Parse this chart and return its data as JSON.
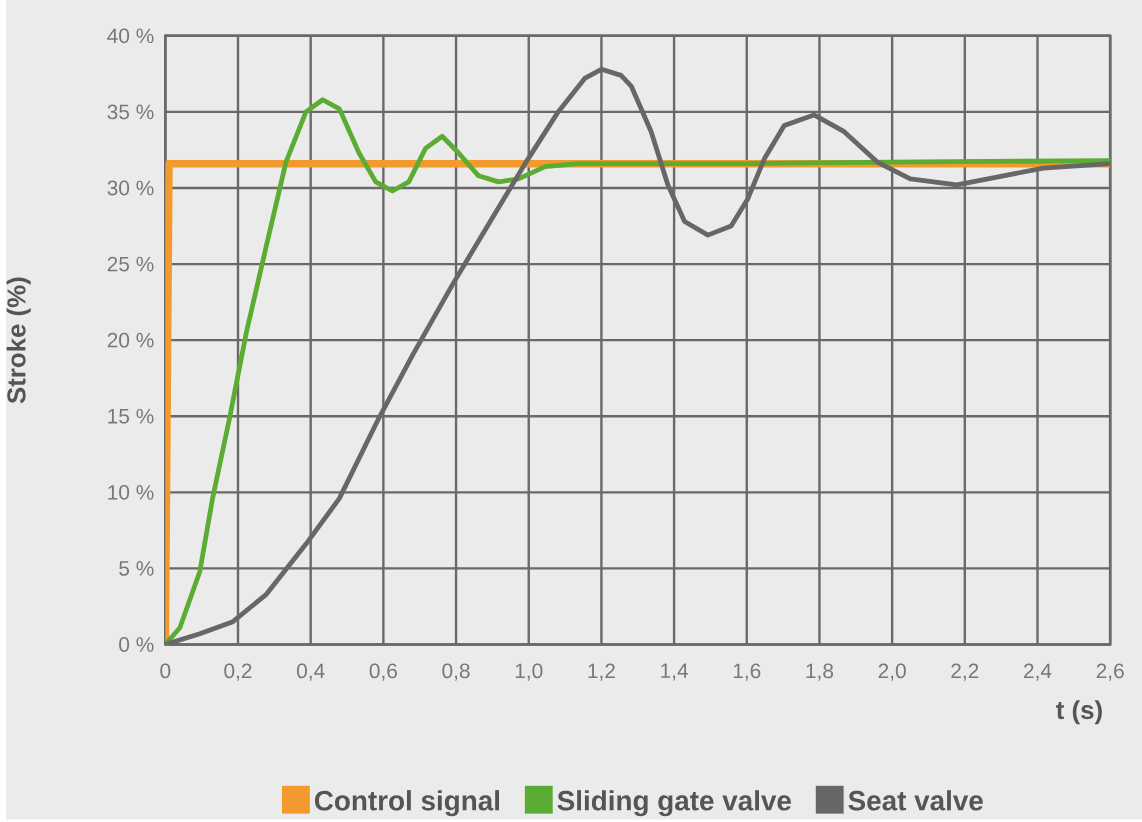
{
  "chart_data": {
    "type": "line",
    "xlabel": "t (s)",
    "ylabel": "Stroke (%)",
    "xlim": [
      0,
      2.6
    ],
    "ylim": [
      0,
      40
    ],
    "xticks": [
      0,
      {
        "value": 0.2,
        "label": "0,2"
      },
      {
        "value": 0.4,
        "label": "0,4"
      },
      {
        "value": 0.6,
        "label": "0,6"
      },
      {
        "value": 0.8,
        "label": "0,8"
      },
      {
        "value": 1.0,
        "label": "1,0"
      },
      {
        "value": 1.2,
        "label": "1,2"
      },
      {
        "value": 1.4,
        "label": "1,4"
      },
      {
        "value": 1.6,
        "label": "1,6"
      },
      {
        "value": 1.8,
        "label": "1,8"
      },
      {
        "value": 2.0,
        "label": "2,0"
      },
      {
        "value": 2.2,
        "label": "2,2"
      },
      {
        "value": 2.4,
        "label": "2,4"
      },
      {
        "value": 2.6,
        "label": "2,6"
      }
    ],
    "yticks": [
      {
        "value": 0,
        "label": "0 %"
      },
      {
        "value": 5,
        "label": "5 %"
      },
      {
        "value": 10,
        "label": "10 %"
      },
      {
        "value": 15,
        "label": "15 %"
      },
      {
        "value": 20,
        "label": "20 %"
      },
      {
        "value": 25,
        "label": "25 %"
      },
      {
        "value": 30,
        "label": "30 %"
      },
      {
        "value": 35,
        "label": "35 %"
      },
      {
        "value": 40,
        "label": "40 %"
      }
    ],
    "grid": true,
    "legend": "bottom",
    "marker": "none",
    "line_style": "solid",
    "series": [
      {
        "name": "Control signal",
        "color": "#f39a2e",
        "x": [
          0,
          0.01,
          2.6
        ],
        "values": [
          0,
          31.6,
          31.6
        ]
      },
      {
        "name": "Sliding gate valve",
        "color": "#5aac32",
        "x": [
          0,
          0.04,
          0.095,
          0.13,
          0.177,
          0.223,
          0.278,
          0.332,
          0.387,
          0.433,
          0.479,
          0.533,
          0.579,
          0.625,
          0.67,
          0.716,
          0.762,
          0.807,
          0.862,
          0.917,
          0.972,
          1.045,
          1.136,
          1.2,
          1.6,
          2.0,
          2.6
        ],
        "values": [
          0,
          1.1,
          4.8,
          9.6,
          14.9,
          20.5,
          26.2,
          31.7,
          35,
          35.8,
          35.2,
          32.3,
          30.4,
          29.8,
          30.4,
          32.6,
          33.4,
          32.3,
          30.8,
          30.4,
          30.6,
          31.4,
          31.6,
          31.6,
          31.6,
          31.7,
          31.8
        ]
      },
      {
        "name": "Seat valve",
        "color": "#676767",
        "x": [
          0,
          0.095,
          0.186,
          0.278,
          0.387,
          0.479,
          0.588,
          0.68,
          0.789,
          0.899,
          0.99,
          1.081,
          1.154,
          1.2,
          1.254,
          1.282,
          1.337,
          1.383,
          1.429,
          1.493,
          1.557,
          1.603,
          1.648,
          1.703,
          1.785,
          1.868,
          1.959,
          2.05,
          2.178,
          2.306,
          2.416,
          2.6
        ],
        "values": [
          0,
          0.7,
          1.5,
          3.3,
          6.6,
          9.6,
          14.9,
          19,
          23.6,
          28,
          31.6,
          35,
          37.2,
          37.8,
          37.4,
          36.7,
          33.7,
          30.2,
          27.8,
          26.9,
          27.5,
          29.3,
          31.9,
          34.1,
          34.8,
          33.7,
          31.7,
          30.6,
          30.2,
          30.8,
          31.3,
          31.6
        ]
      }
    ]
  }
}
